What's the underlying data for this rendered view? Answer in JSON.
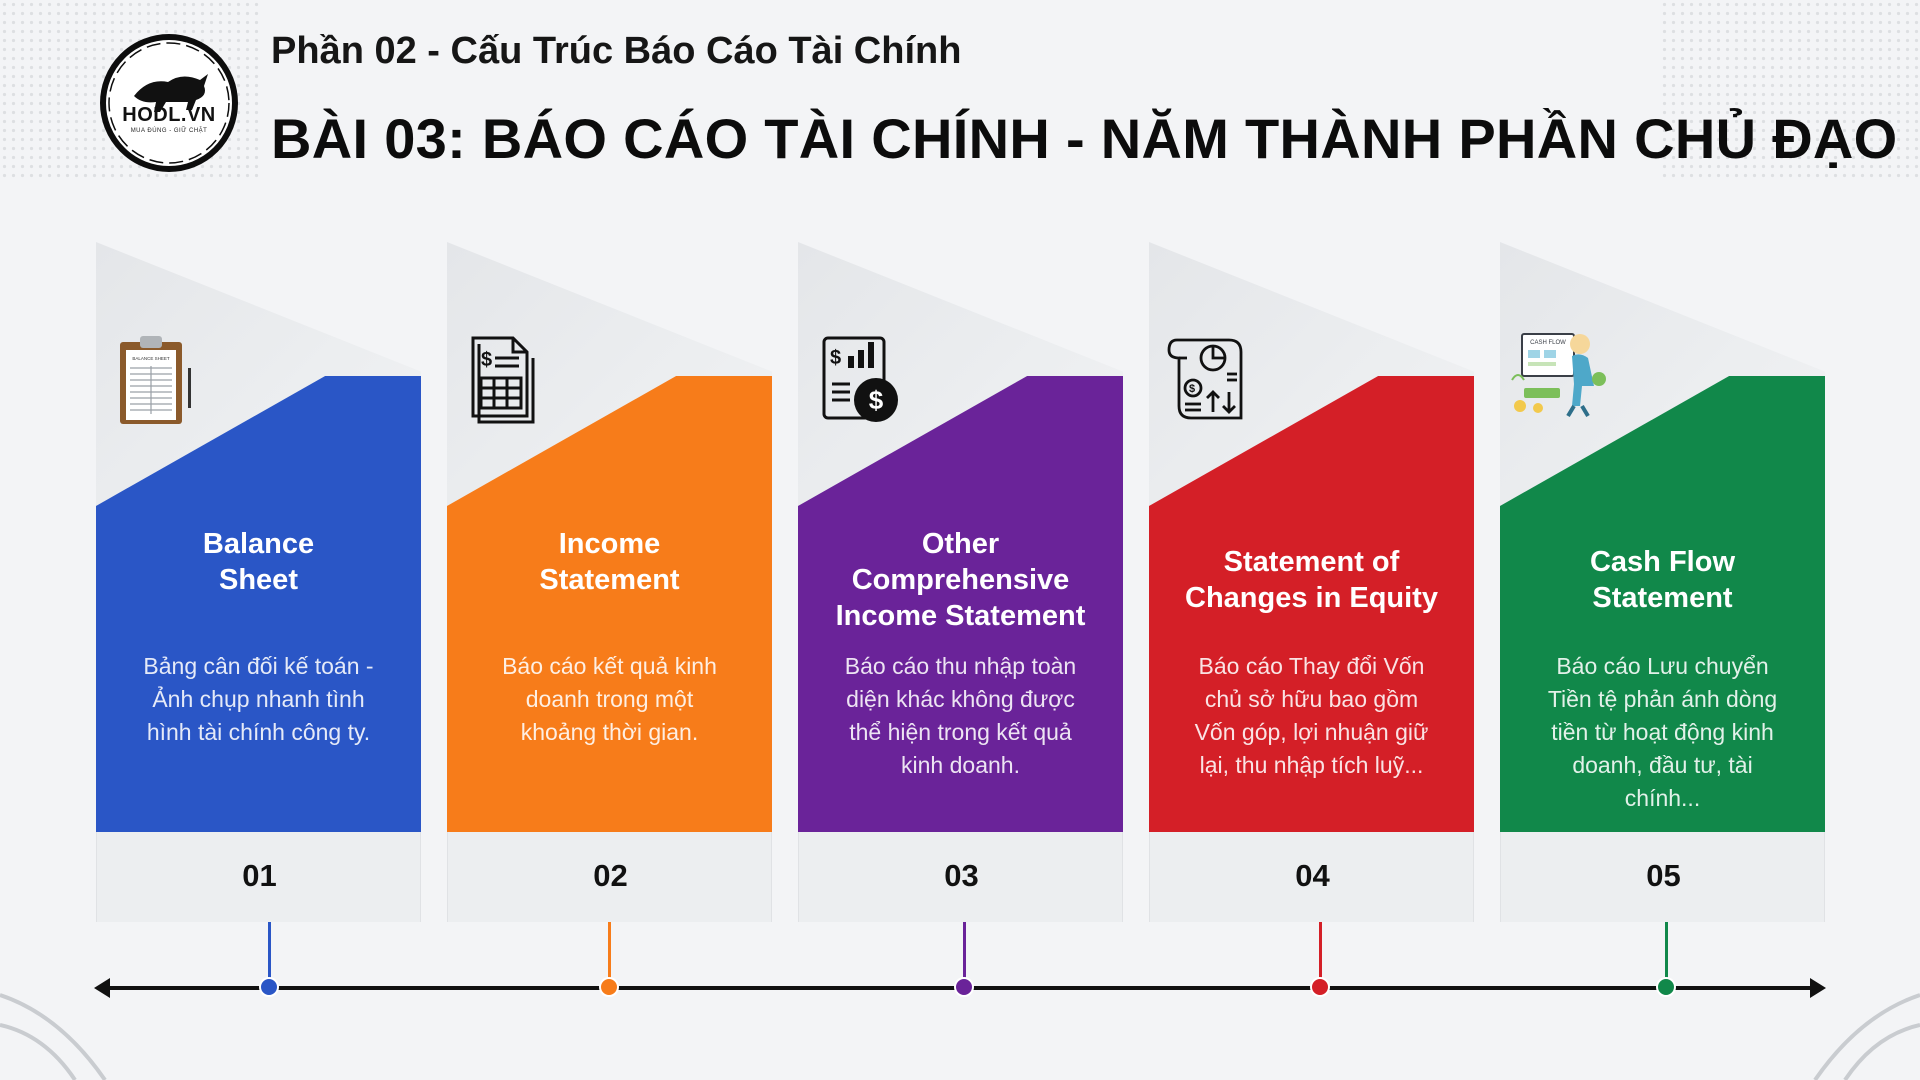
{
  "header": {
    "logo_text": "HODL.VN",
    "logo_sub": "MUA ĐÚNG - GIỮ CHẶT",
    "subtitle": "Phần 02 - Cấu Trúc Báo Cáo Tài Chính",
    "title": "BÀI 03: BÁO CÁO TÀI CHÍNH - NĂM THÀNH PHẦN CHỦ ĐẠO"
  },
  "cards": [
    {
      "number": "01",
      "title_lines": [
        "Balance",
        "Sheet"
      ],
      "description": "Bảng cân đối kế toán - Ảnh chụp nhanh tình hình tài chính công ty.",
      "color": "#2a56c6",
      "icon": "clipboard-balance-sheet-icon",
      "icon_labels": [
        "BALANCE SHEET"
      ]
    },
    {
      "number": "02",
      "title_lines": [
        "Income",
        "Statement"
      ],
      "description": "Báo cáo kết quả kinh doanh trong một khoảng thời gian.",
      "color": "#f77c1a",
      "icon": "invoice-document-icon"
    },
    {
      "number": "03",
      "title_lines": [
        "Other",
        "Comprehensive",
        "Income Statement"
      ],
      "description": "Báo cáo thu nhập toàn diện khác không được thể hiện trong kết quả kinh doanh.",
      "color": "#6a2399",
      "icon": "chart-dollar-report-icon"
    },
    {
      "number": "04",
      "title_lines": [
        "Statement of",
        "Changes in Equity"
      ],
      "description": "Báo cáo Thay đổi Vốn chủ sở hữu bao gồm Vốn góp, lợi nhuận giữ lại, thu nhập tích luỹ...",
      "color": "#d41f27",
      "icon": "equity-scroll-icon"
    },
    {
      "number": "05",
      "title_lines": [
        "Cash Flow",
        "Statement"
      ],
      "description": "Báo cáo Lưu chuyển Tiền tệ phản ánh dòng tiền từ hoạt động kinh doanh, đầu tư, tài chính...",
      "color": "#11884a",
      "icon": "cash-flow-illustration-icon",
      "icon_labels": [
        "CASH FLOW"
      ]
    }
  ],
  "timeline_color": "#111111"
}
